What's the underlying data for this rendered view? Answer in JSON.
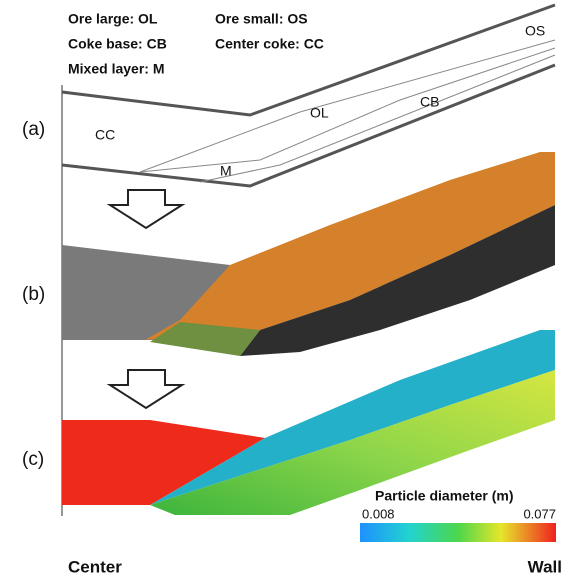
{
  "legend": [
    "Ore large: OL",
    "Ore small: OS",
    "Coke base: CB",
    "Center coke: CC",
    "Mixed layer: M"
  ],
  "panels": [
    "(a)",
    "(b)",
    "(c)"
  ],
  "regions": {
    "os": "OS",
    "ol": "OL",
    "cb": "CB",
    "cc": "CC",
    "m": "M"
  },
  "colorbar": {
    "title": "Particle diameter (m)",
    "min": "0.008",
    "max": "0.077"
  },
  "axis": {
    "left": "Center",
    "right": "Wall"
  }
}
